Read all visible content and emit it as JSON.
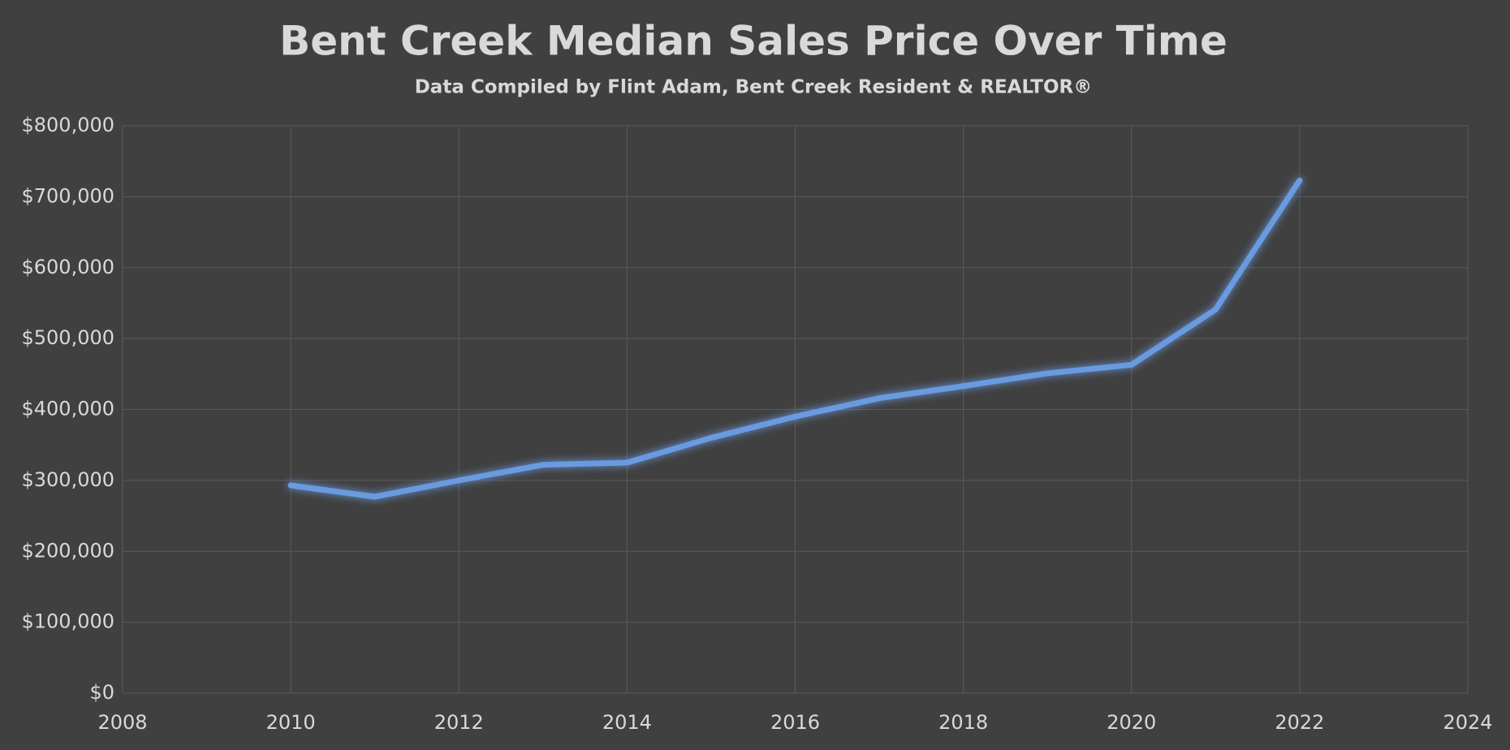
{
  "chart_data": {
    "type": "line",
    "title": "Bent Creek Median Sales Price Over Time",
    "subtitle": "Data Compiled by Flint Adam, Bent Creek Resident & REALTOR®",
    "x": [
      2010,
      2011,
      2012,
      2013,
      2014,
      2015,
      2016,
      2017,
      2018,
      2019,
      2020,
      2021,
      2022
    ],
    "values": [
      293000,
      277000,
      300000,
      322000,
      325000,
      360000,
      390000,
      416000,
      433000,
      451000,
      463000,
      541000,
      723000
    ],
    "color": "#6a9ae0",
    "xlim": [
      2008,
      2024
    ],
    "xticks": [
      2008,
      2010,
      2012,
      2014,
      2016,
      2018,
      2020,
      2022,
      2024
    ],
    "ylim": [
      0,
      800000
    ],
    "yticks": [
      {
        "value": 0,
        "label": "$0"
      },
      {
        "value": 100000,
        "label": "$100,000"
      },
      {
        "value": 200000,
        "label": "$200,000"
      },
      {
        "value": 300000,
        "label": "$300,000"
      },
      {
        "value": 400000,
        "label": "$400,000"
      },
      {
        "value": 500000,
        "label": "$500,000"
      },
      {
        "value": 600000,
        "label": "$600,000"
      },
      {
        "value": 700000,
        "label": "$700,000"
      },
      {
        "value": 800000,
        "label": "$800,000"
      }
    ],
    "grid": true
  }
}
